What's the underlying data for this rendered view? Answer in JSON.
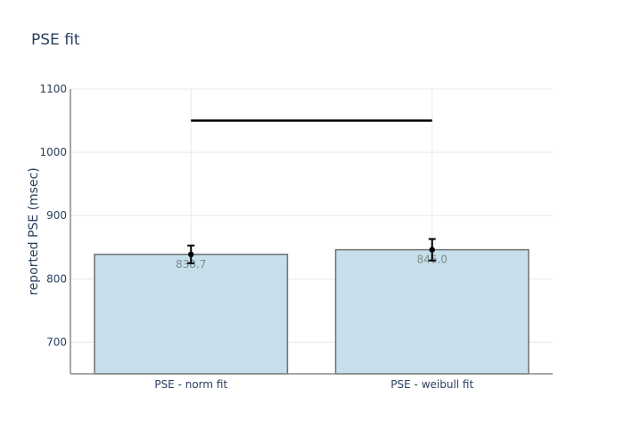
{
  "chart_data": {
    "type": "bar",
    "title": "PSE fit",
    "xlabel": "",
    "ylabel": "reported PSE (msec)",
    "categories": [
      "PSE - norm fit",
      "PSE - weibull fit"
    ],
    "values": [
      838.7,
      846.0
    ],
    "value_labels": [
      "838.7",
      "846.0"
    ],
    "error": [
      14,
      17
    ],
    "ylim": [
      650,
      1100
    ],
    "yticks": [
      700,
      800,
      900,
      1000,
      1100
    ],
    "grid": true,
    "reference_line": {
      "y": 1050,
      "from": "PSE - norm fit",
      "to": "PSE - weibull fit"
    },
    "colors": {
      "bar_fill": "#c6dfeb",
      "bar_stroke": "#707070",
      "marker": "#000000",
      "grid": "#e5e8ee",
      "axis": "#8a8a8a",
      "text": "#2a3f5f"
    }
  }
}
